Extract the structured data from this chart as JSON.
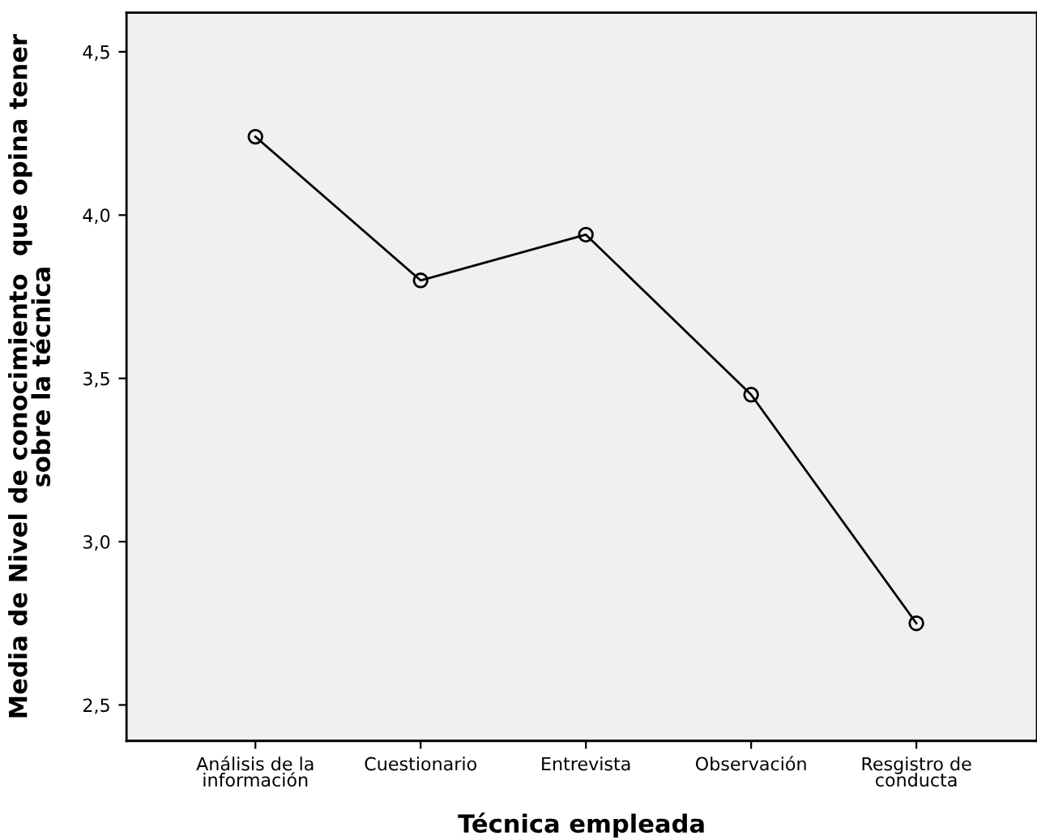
{
  "chart_data": {
    "type": "line",
    "xlabel": "Técnica empleada",
    "ylabel": "Media de Nivel de conocimiento  que opina tener\nsobre la técnica",
    "categories": [
      "Análisis de la\ninformación",
      "Cuestionario",
      "Entrevista",
      "Observación",
      "Resgistro de\nconducta"
    ],
    "series": [
      {
        "color": "#000000",
        "values": [
          4.24,
          3.8,
          3.94,
          3.45,
          2.75
        ]
      }
    ],
    "ylim": [
      2.39,
      4.62
    ],
    "yticks": [
      {
        "value": 2.5,
        "label": "2,5"
      },
      {
        "value": 3.0,
        "label": "3,0"
      },
      {
        "value": 3.5,
        "label": "3,5"
      },
      {
        "value": 4.0,
        "label": "4,0"
      },
      {
        "value": 4.5,
        "label": "4,5"
      }
    ],
    "marker": "circle",
    "line_style": "solid",
    "grid": false,
    "legend": false
  }
}
